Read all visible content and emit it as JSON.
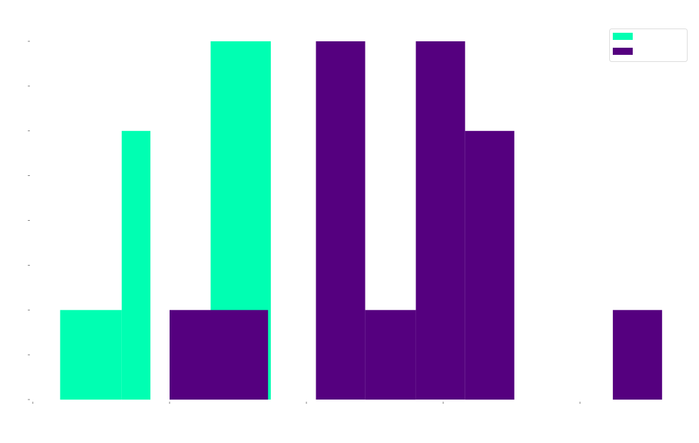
{
  "chart_data": {
    "type": "bar",
    "subtype": "overlaid-histogram",
    "title": "",
    "xlabel": "",
    "ylabel": "",
    "xlim": [
      0,
      5
    ],
    "ylim": [
      0,
      8
    ],
    "x_ticks": [
      0,
      1,
      2,
      3,
      4
    ],
    "y_ticks": [
      0,
      1,
      2,
      3,
      4,
      5,
      6,
      7,
      8
    ],
    "grid": false,
    "legend_position": "top-right",
    "series": [
      {
        "color": "#00FFB2",
        "bins": [
          {
            "x0": 0.2,
            "x1": 0.65,
            "count": 2
          },
          {
            "x0": 0.65,
            "x1": 0.86,
            "count": 6
          },
          {
            "x0": 1.3,
            "x1": 1.74,
            "count": 8
          }
        ]
      },
      {
        "color": "#55007F",
        "bins": [
          {
            "x0": 1.0,
            "x1": 1.72,
            "count": 2
          },
          {
            "x0": 2.07,
            "x1": 2.43,
            "count": 8
          },
          {
            "x0": 2.43,
            "x1": 2.8,
            "count": 2
          },
          {
            "x0": 2.8,
            "x1": 3.16,
            "count": 8
          },
          {
            "x0": 3.16,
            "x1": 3.52,
            "count": 6
          },
          {
            "x0": 4.24,
            "x1": 4.6,
            "count": 2
          }
        ]
      }
    ]
  }
}
